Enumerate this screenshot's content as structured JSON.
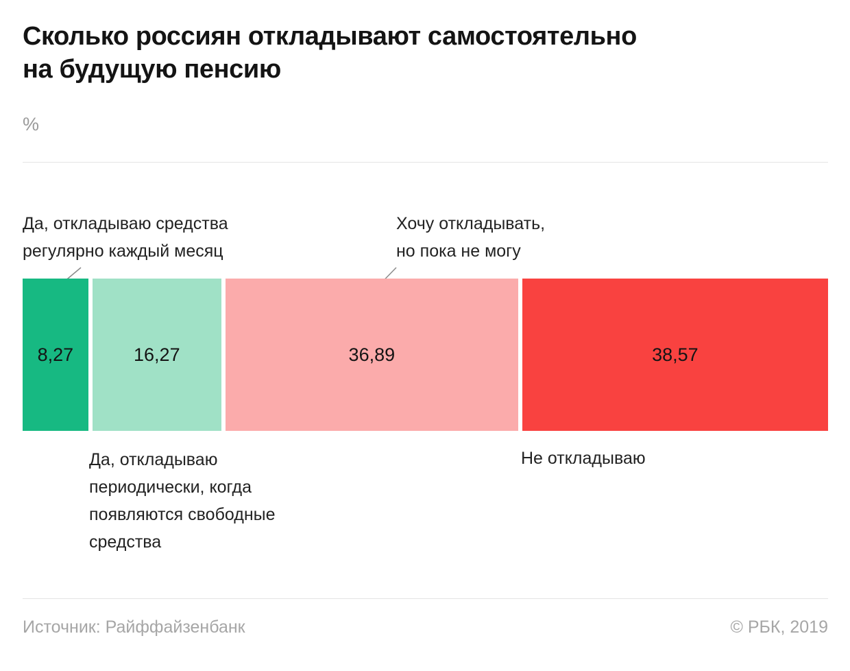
{
  "header": {
    "title": "Сколько россиян откладывают самостоятельно\nна будущую пенсию",
    "unit": "%"
  },
  "chart_data": {
    "type": "bar",
    "subtype": "horizontal-stacked",
    "title": "Сколько россиян откладывают самостоятельно на будущую пенсию",
    "unit": "%",
    "categories": [
      "Да, откладываю средства регулярно каждый месяц",
      "Да, откладываю периодически, когда появляются свободные средства",
      "Хочу откладывать, но пока не могу",
      "Не откладываю"
    ],
    "values": [
      8.27,
      16.27,
      36.89,
      38.57
    ],
    "value_labels": [
      "8,27",
      "16,27",
      "36,89",
      "38,57"
    ],
    "colors": [
      "#17b982",
      "#a0e1c6",
      "#fbabab",
      "#f94240"
    ],
    "xlim": [
      0,
      100
    ],
    "grid": false,
    "legend_position": "annotations-around-bar"
  },
  "annotations": {
    "top_left": "Да, откладываю средства\nрегулярно каждый месяц",
    "top_right": "Хочу откладывать,\nно пока не могу",
    "bottom_left": "Да, откладываю\nпериодически, когда\nпоявляются свободные\nсредства",
    "bottom_right": "Не откладываю"
  },
  "footer": {
    "source": "Источник: Райффайзенбанк",
    "copyright": "© РБК, 2019"
  }
}
